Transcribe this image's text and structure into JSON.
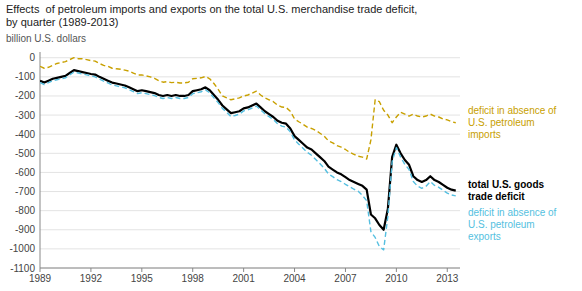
{
  "chart_data": {
    "type": "line",
    "title": "Effects  of petroleum imports and exports on the total U.S. merchandise trade deficit,",
    "subtitle": "by quarter (1989-2013)",
    "y_label": "billion U.S. dollars",
    "xlim": [
      1989.0,
      2013.75
    ],
    "ylim": [
      -1100,
      30
    ],
    "yticks": [
      0,
      -100,
      -200,
      -300,
      -400,
      -500,
      -600,
      -700,
      -800,
      -900,
      -1000,
      -1100
    ],
    "xticks": [
      1989,
      1992,
      1995,
      1998,
      2001,
      2004,
      2007,
      2010,
      2013
    ],
    "grid": true,
    "x": [
      1989.0,
      1989.25,
      1989.5,
      1989.75,
      1990.0,
      1990.25,
      1990.5,
      1990.75,
      1991.0,
      1991.25,
      1991.5,
      1991.75,
      1992.0,
      1992.25,
      1992.5,
      1992.75,
      1993.0,
      1993.25,
      1993.5,
      1993.75,
      1994.0,
      1994.25,
      1994.5,
      1994.75,
      1995.0,
      1995.25,
      1995.5,
      1995.75,
      1996.0,
      1996.25,
      1996.5,
      1996.75,
      1997.0,
      1997.25,
      1997.5,
      1997.75,
      1998.0,
      1998.25,
      1998.5,
      1998.75,
      1999.0,
      1999.25,
      1999.5,
      1999.75,
      2000.0,
      2000.25,
      2000.5,
      2000.75,
      2001.0,
      2001.25,
      2001.5,
      2001.75,
      2002.0,
      2002.25,
      2002.5,
      2002.75,
      2003.0,
      2003.25,
      2003.5,
      2003.75,
      2004.0,
      2004.25,
      2004.5,
      2004.75,
      2005.0,
      2005.25,
      2005.5,
      2005.75,
      2006.0,
      2006.25,
      2006.5,
      2006.75,
      2007.0,
      2007.25,
      2007.5,
      2007.75,
      2008.0,
      2008.25,
      2008.5,
      2008.75,
      2009.0,
      2009.25,
      2009.5,
      2009.75,
      2010.0,
      2010.25,
      2010.5,
      2010.75,
      2011.0,
      2011.25,
      2011.5,
      2011.75,
      2012.0,
      2012.25,
      2012.5,
      2012.75,
      2013.0,
      2013.25,
      2013.5
    ],
    "series": [
      {
        "name": "deficit in absence of\nU.S. petroleum\nimports",
        "color": "#c8a000",
        "line_style": "dashed",
        "values": [
          -45,
          -55,
          -50,
          -40,
          -30,
          -25,
          -20,
          -10,
          0,
          -5,
          -5,
          -10,
          -15,
          -18,
          -30,
          -40,
          -45,
          -55,
          -58,
          -60,
          -65,
          -70,
          -80,
          -90,
          -90,
          -95,
          -100,
          -108,
          -120,
          -128,
          -125,
          -130,
          -128,
          -132,
          -132,
          -128,
          -110,
          -108,
          -105,
          -98,
          -110,
          -135,
          -165,
          -200,
          -210,
          -220,
          -215,
          -210,
          -200,
          -195,
          -185,
          -175,
          -195,
          -210,
          -220,
          -230,
          -248,
          -258,
          -260,
          -280,
          -320,
          -335,
          -348,
          -363,
          -370,
          -380,
          -395,
          -410,
          -435,
          -445,
          -460,
          -468,
          -480,
          -495,
          -505,
          -515,
          -520,
          -530,
          -430,
          -220,
          -230,
          -275,
          -300,
          -340,
          -310,
          -285,
          -295,
          -305,
          -295,
          -305,
          -310,
          -305,
          -295,
          -305,
          -310,
          -320,
          -325,
          -335,
          -340
        ]
      },
      {
        "name": "total U.S. goods\ntrade deficit",
        "color": "#000000",
        "line_style": "solid",
        "values": [
          -120,
          -130,
          -120,
          -110,
          -105,
          -100,
          -95,
          -80,
          -65,
          -70,
          -75,
          -80,
          -85,
          -88,
          -100,
          -110,
          -120,
          -130,
          -135,
          -140,
          -145,
          -155,
          -165,
          -175,
          -170,
          -175,
          -180,
          -185,
          -195,
          -200,
          -195,
          -200,
          -195,
          -200,
          -200,
          -195,
          -175,
          -170,
          -165,
          -155,
          -170,
          -195,
          -220,
          -250,
          -270,
          -290,
          -285,
          -280,
          -265,
          -260,
          -250,
          -240,
          -260,
          -280,
          -295,
          -310,
          -330,
          -340,
          -345,
          -370,
          -410,
          -430,
          -450,
          -470,
          -480,
          -500,
          -520,
          -540,
          -570,
          -585,
          -600,
          -610,
          -625,
          -640,
          -650,
          -660,
          -670,
          -690,
          -820,
          -840,
          -875,
          -900,
          -790,
          -520,
          -455,
          -500,
          -535,
          -560,
          -620,
          -640,
          -650,
          -640,
          -620,
          -640,
          -650,
          -665,
          -680,
          -690,
          -695
        ]
      },
      {
        "name": "deficit in absence of\nU.S. petroleum\nexports",
        "color": "#55bfe0",
        "line_style": "dashed",
        "values": [
          -130,
          -140,
          -130,
          -120,
          -115,
          -110,
          -105,
          -90,
          -75,
          -80,
          -85,
          -90,
          -95,
          -100,
          -112,
          -122,
          -132,
          -142,
          -147,
          -152,
          -157,
          -167,
          -177,
          -188,
          -183,
          -188,
          -193,
          -198,
          -208,
          -213,
          -208,
          -213,
          -208,
          -213,
          -213,
          -208,
          -188,
          -183,
          -178,
          -168,
          -183,
          -210,
          -235,
          -265,
          -285,
          -308,
          -302,
          -295,
          -278,
          -273,
          -263,
          -253,
          -273,
          -293,
          -308,
          -323,
          -345,
          -358,
          -363,
          -388,
          -430,
          -452,
          -473,
          -495,
          -510,
          -532,
          -555,
          -578,
          -608,
          -622,
          -638,
          -648,
          -662,
          -675,
          -688,
          -698,
          -720,
          -748,
          -910,
          -940,
          -988,
          -1005,
          -830,
          -545,
          -470,
          -520,
          -558,
          -585,
          -648,
          -672,
          -683,
          -672,
          -648,
          -668,
          -678,
          -693,
          -708,
          -718,
          -723
        ]
      }
    ]
  }
}
